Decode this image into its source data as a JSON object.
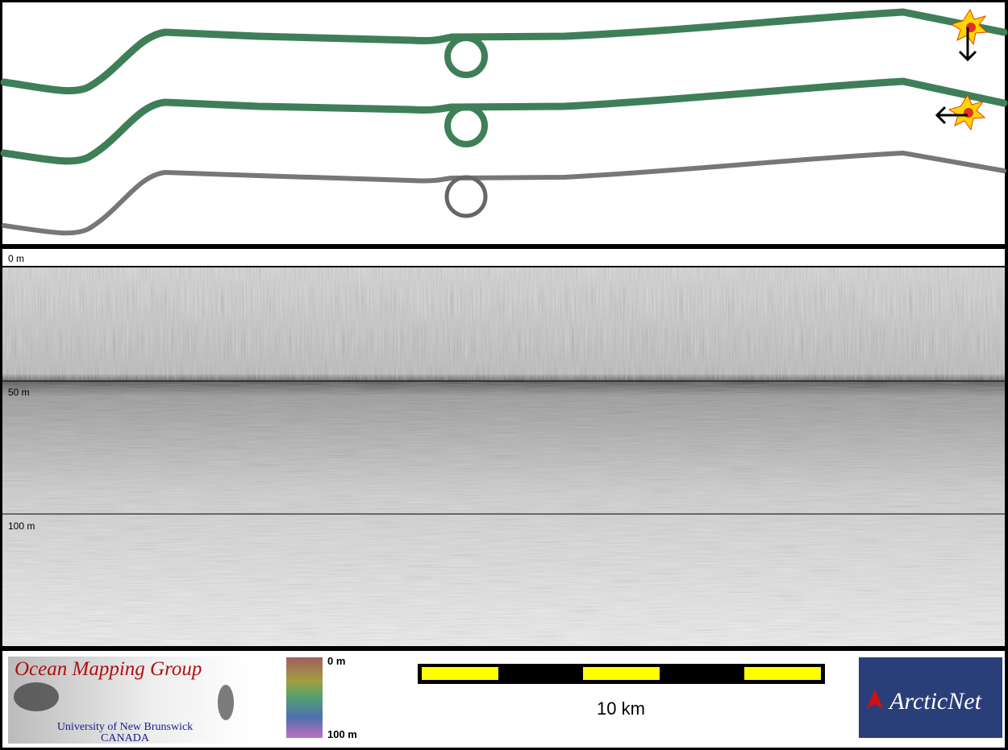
{
  "depth_axis": {
    "labels": [
      "0 m",
      "50 m",
      "100 m"
    ]
  },
  "color_scale": {
    "top_label": "0 m",
    "bottom_label": "100 m"
  },
  "scale_bar": {
    "label": "10 km"
  },
  "logos": {
    "omg_title": "Ocean Mapping Group",
    "omg_university": "University of New Brunswick",
    "omg_country": "CANADA",
    "arcticnet": "ArcticNet"
  }
}
